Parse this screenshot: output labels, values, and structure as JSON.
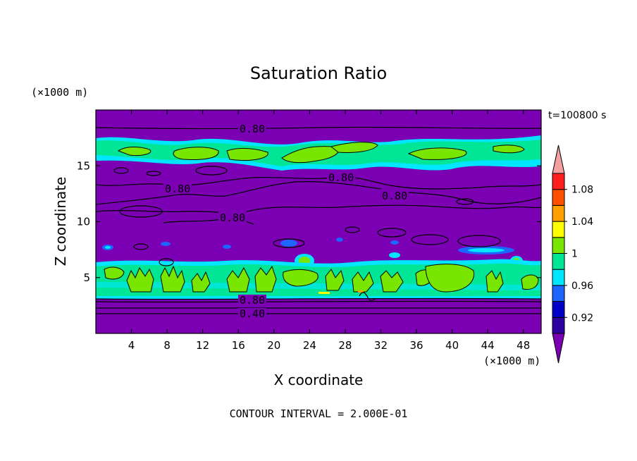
{
  "chart_data": {
    "type": "heatmap",
    "title": "Saturation Ratio",
    "xlabel": "X coordinate",
    "ylabel": "Z coordinate",
    "x_unit": "(×1000 m)",
    "y_unit": "(×1000 m)",
    "time_label": "t=100800 s",
    "footer": "CONTOUR INTERVAL = 2.000E-01",
    "xlim": [
      0,
      50
    ],
    "ylim": [
      0,
      20
    ],
    "x_ticks": [
      4,
      8,
      12,
      16,
      20,
      24,
      28,
      32,
      36,
      40,
      44,
      48
    ],
    "y_ticks": [
      5,
      10,
      15
    ],
    "contour_labels": [
      "0.80",
      "0.80",
      "0.80",
      "0.80",
      "0.80",
      "0.80",
      "0.80",
      "0.40"
    ],
    "colorbar": {
      "labels": [
        "1.08",
        "1.04",
        "1",
        "0.96",
        "0.92"
      ],
      "colors": [
        "#7B00B4",
        "#2D00A0",
        "#0000C8",
        "#1E64FF",
        "#00E6FF",
        "#00E696",
        "#78E600",
        "#FFFF00",
        "#FFA000",
        "#FF5000",
        "#FF1E1E",
        "#F4A0A0"
      ]
    },
    "fill_colors": {
      "background": "#7B00B4",
      "moist": "#00E696",
      "saturated": "#78E600",
      "subsat": "#00E6FF",
      "dry_blue": "#1E64FF"
    }
  }
}
